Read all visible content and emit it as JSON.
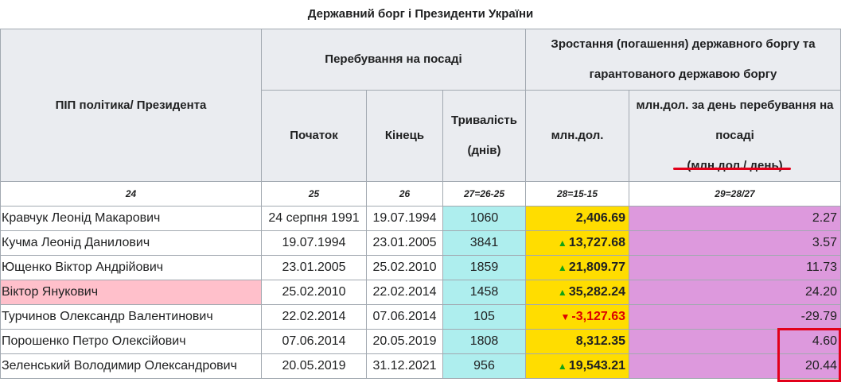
{
  "caption": "Державний борг і Президенти України",
  "header": {
    "name_col": "ПІП політика/ Президента",
    "tenure_group": "Перебування на посаді",
    "debt_group": "Зростання (погашення) державного боргу та гарантованого державою боргу",
    "start": "Початок",
    "end": "Кінець",
    "duration": "Тривалість (днів)",
    "mln": "млн.дол.",
    "perday_line1": "млн.дол. за день перебування на посаді",
    "perday_line2": "(млн.дол./ день)"
  },
  "col_numbers": [
    "24",
    "25",
    "26",
    "27=26-25",
    "28=15-15",
    "29=28/27"
  ],
  "rows": [
    {
      "name": "Кравчук Леонід Макарович",
      "start": "24 серпня 1991",
      "end": "19.07.1994",
      "days": "1060",
      "trend": "",
      "mln": "2,406.69",
      "perday": "2.27"
    },
    {
      "name": "Кучма Леонід Данилович",
      "start": "19.07.1994",
      "end": "23.01.2005",
      "days": "3841",
      "trend": "▲",
      "mln": "13,727.68",
      "perday": "3.57"
    },
    {
      "name": "Ющенко Віктор Андрійович",
      "start": "23.01.2005",
      "end": "25.02.2010",
      "days": "1859",
      "trend": "▲",
      "mln": "21,809.77",
      "perday": "11.73"
    },
    {
      "name": "Віктор Янукович",
      "start": "25.02.2010",
      "end": "22.02.2014",
      "days": "1458",
      "trend": "▲",
      "mln": "35,282.24",
      "perday": "24.20"
    },
    {
      "name": "Турчинов Олександр Валентинович",
      "start": "22.02.2014",
      "end": "07.06.2014",
      "days": "105",
      "trend": "▼",
      "mln": "-3,127.63",
      "perday": "-29.79"
    },
    {
      "name": "Порошенко Петро Олексійович",
      "start": "07.06.2014",
      "end": "20.05.2019",
      "days": "1808",
      "trend": "",
      "mln": "8,312.35",
      "perday": "4.60"
    },
    {
      "name": "Зеленський Володимир Олександрович",
      "start": "20.05.2019",
      "end": "31.12.2021",
      "days": "956",
      "trend": "▲",
      "mln": "19,543.21",
      "perday": "20.44"
    }
  ],
  "colors": {
    "header_bg": "#eaecf0",
    "duration_bg": "#aeeeee",
    "mln_bg": "#ffdd00",
    "perday_bg": "#dd99dd",
    "highlight_row_bg": "#ffc0cb",
    "annotation_red": "#e2001a",
    "up_arrow": "#14a314",
    "down_arrow": "#dd0000"
  }
}
